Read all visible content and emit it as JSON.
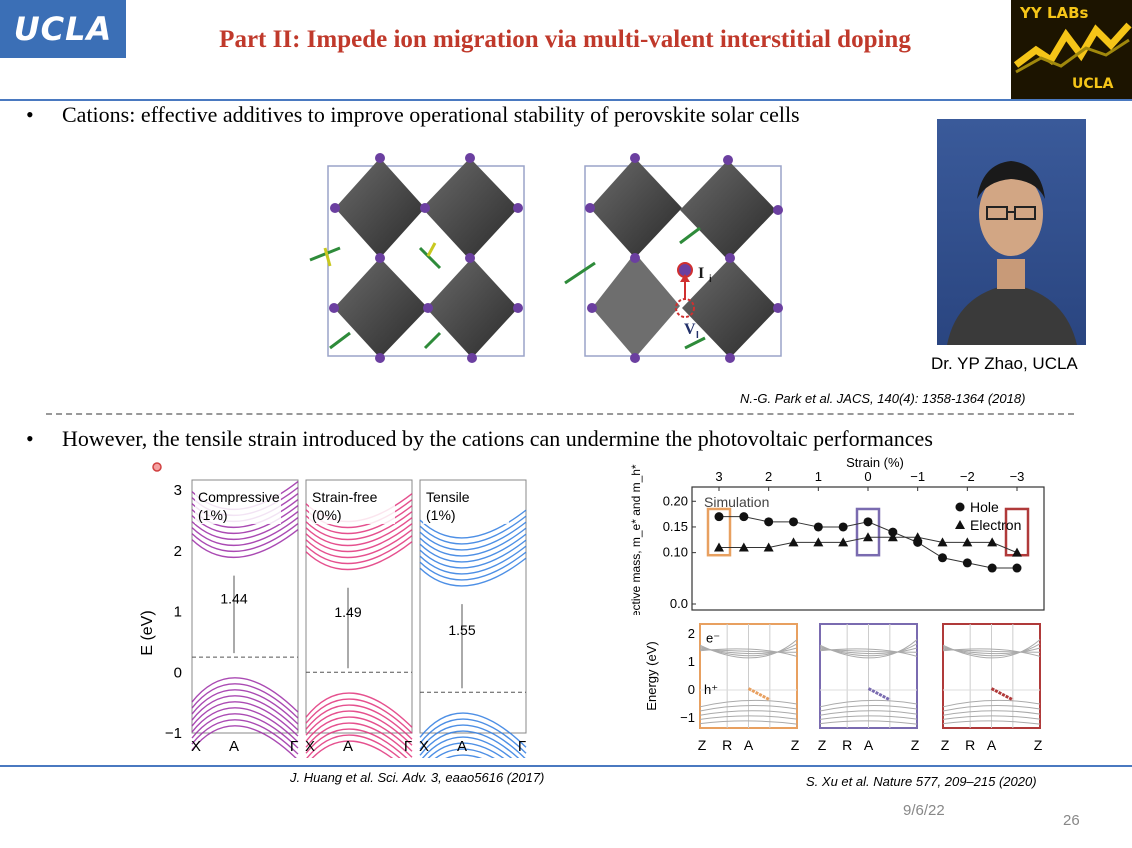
{
  "header": {
    "ucla_logo": "UCLA",
    "title": "Part II: Impede ion migration via multi-valent interstitial doping",
    "lab_logo_line1": "YY LABs",
    "lab_logo_line2": "UCLA"
  },
  "bullets": [
    {
      "marker": "•",
      "text": "Cations: effective additives to improve operational stability of perovskite solar cells"
    },
    {
      "marker": "•",
      "text": "However, the tensile strain introduced by the cations can undermine the photovoltaic performances"
    }
  ],
  "structure_figure": {
    "label_interstitial": "I",
    "label_interstitial_sub": "i",
    "label_vacancy": "V",
    "label_vacancy_sub": "I"
  },
  "photo_caption": "Dr. YP Zhao, UCLA",
  "references": {
    "park": "N.-G. Park et al. JACS, 140(4): 1358-1364 (2018)",
    "huang": "J. Huang et al. Sci. Adv. 3, eaao5616 (2017)",
    "xu": "S. Xu et al. Nature 577, 209–215 (2020)"
  },
  "band_figure": {
    "ylabel": "E (eV)",
    "yticks": [
      "3",
      "2",
      "1",
      "0",
      "−1"
    ],
    "panels": [
      {
        "label": "Compressive",
        "sub": "(1%)",
        "gap": "1.44",
        "color": "#9b2aa6",
        "xticks": [
          "X",
          "A",
          "Γ"
        ]
      },
      {
        "label": "Strain-free",
        "sub": "(0%)",
        "gap": "1.49",
        "color": "#e0317a",
        "xticks": [
          "X",
          "A",
          "Γ"
        ]
      },
      {
        "label": "Tensile",
        "sub": "(1%)",
        "gap": "1.55",
        "color": "#2e7be0",
        "xticks": [
          "X",
          "A",
          "Γ"
        ]
      }
    ]
  },
  "chart_data": {
    "type": "scatter",
    "title": "",
    "xlabel": "Strain (%)",
    "ylabel": "Effective mass, m_e* and m_h*",
    "x": [
      3,
      2.5,
      2,
      1.5,
      1,
      0.5,
      0,
      -0.5,
      -1,
      -1.5,
      -2,
      -2.5,
      -3
    ],
    "xticks": [
      "3",
      "2",
      "1",
      "0",
      "−1",
      "−2",
      "−3"
    ],
    "yticks": [
      "0.20",
      "0.15",
      "0.10",
      "0.0"
    ],
    "ylim": [
      0,
      0.22
    ],
    "annotation": "Simulation",
    "legend": "top-right",
    "series": [
      {
        "name": "Hole",
        "values": [
          0.17,
          0.17,
          0.16,
          0.16,
          0.15,
          0.15,
          0.16,
          0.14,
          0.12,
          0.09,
          0.08,
          0.07,
          0.07
        ]
      },
      {
        "name": "Electron",
        "values": [
          0.11,
          0.11,
          0.11,
          0.12,
          0.12,
          0.12,
          0.13,
          0.13,
          0.13,
          0.12,
          0.12,
          0.12,
          0.1
        ]
      }
    ]
  },
  "energy_figure": {
    "ylabel": "Energy (eV)",
    "yticks": [
      "2",
      "1",
      "0",
      "−1"
    ],
    "electron_label": "e⁻",
    "hole_label": "h⁺",
    "panels": [
      {
        "color": "#e8a060",
        "xticks": [
          "Z",
          "R",
          "A",
          "Z"
        ]
      },
      {
        "color": "#7a6bb0",
        "xticks": [
          "Z",
          "R",
          "A",
          "Z"
        ]
      },
      {
        "color": "#b03a3a",
        "xticks": [
          "Z",
          "R",
          "A",
          "Z"
        ]
      }
    ]
  },
  "footer": {
    "date": "9/6/22",
    "page": "26"
  }
}
